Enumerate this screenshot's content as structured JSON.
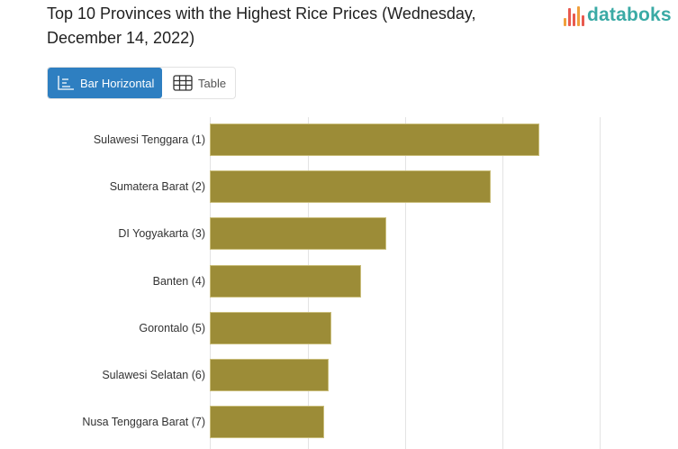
{
  "header": {
    "title": "Top 10 Provinces with the Highest Rice Prices (Wednesday, December 14, 2022)",
    "logo_text": "databoks",
    "logo_icon": "bars-waveform-icon"
  },
  "view_toggle": {
    "options": [
      {
        "label": "Bar Horizontal",
        "icon": "bar-chart-icon",
        "active": true
      },
      {
        "label": "Table",
        "icon": "table-grid-icon",
        "active": false
      }
    ]
  },
  "colors": {
    "bar": "#9c8c37",
    "toggle_active": "#2e7fc1",
    "logo_text": "#3aaaa5",
    "logo_mark": [
      "#f0a03c",
      "#e85a4f",
      "#e85a4f",
      "#f0a03c",
      "#e85a4f"
    ]
  },
  "chart_data": {
    "type": "bar",
    "orientation": "horizontal",
    "title": "Top 10 Provinces with the Highest Rice Prices (Wednesday, December 14, 2022)",
    "categories": [
      "Sulawesi Tenggara (1)",
      "Sumatera Barat (2)",
      "DI Yogyakarta (3)",
      "Banten (4)",
      "Gorontalo (5)",
      "Sulawesi Selatan (6)",
      "Nusa Tenggara Barat (7)"
    ],
    "values": [
      3.38,
      2.88,
      1.81,
      1.55,
      1.25,
      1.22,
      1.17
    ],
    "value_note": "Relative lengths in gridline units (no axis tick labels visible in view)",
    "xlabel": "",
    "ylabel": "",
    "xlim": [
      0,
      4.0
    ],
    "gridlines": [
      0,
      1,
      2,
      3,
      4
    ],
    "grid": true,
    "legend": "none"
  }
}
